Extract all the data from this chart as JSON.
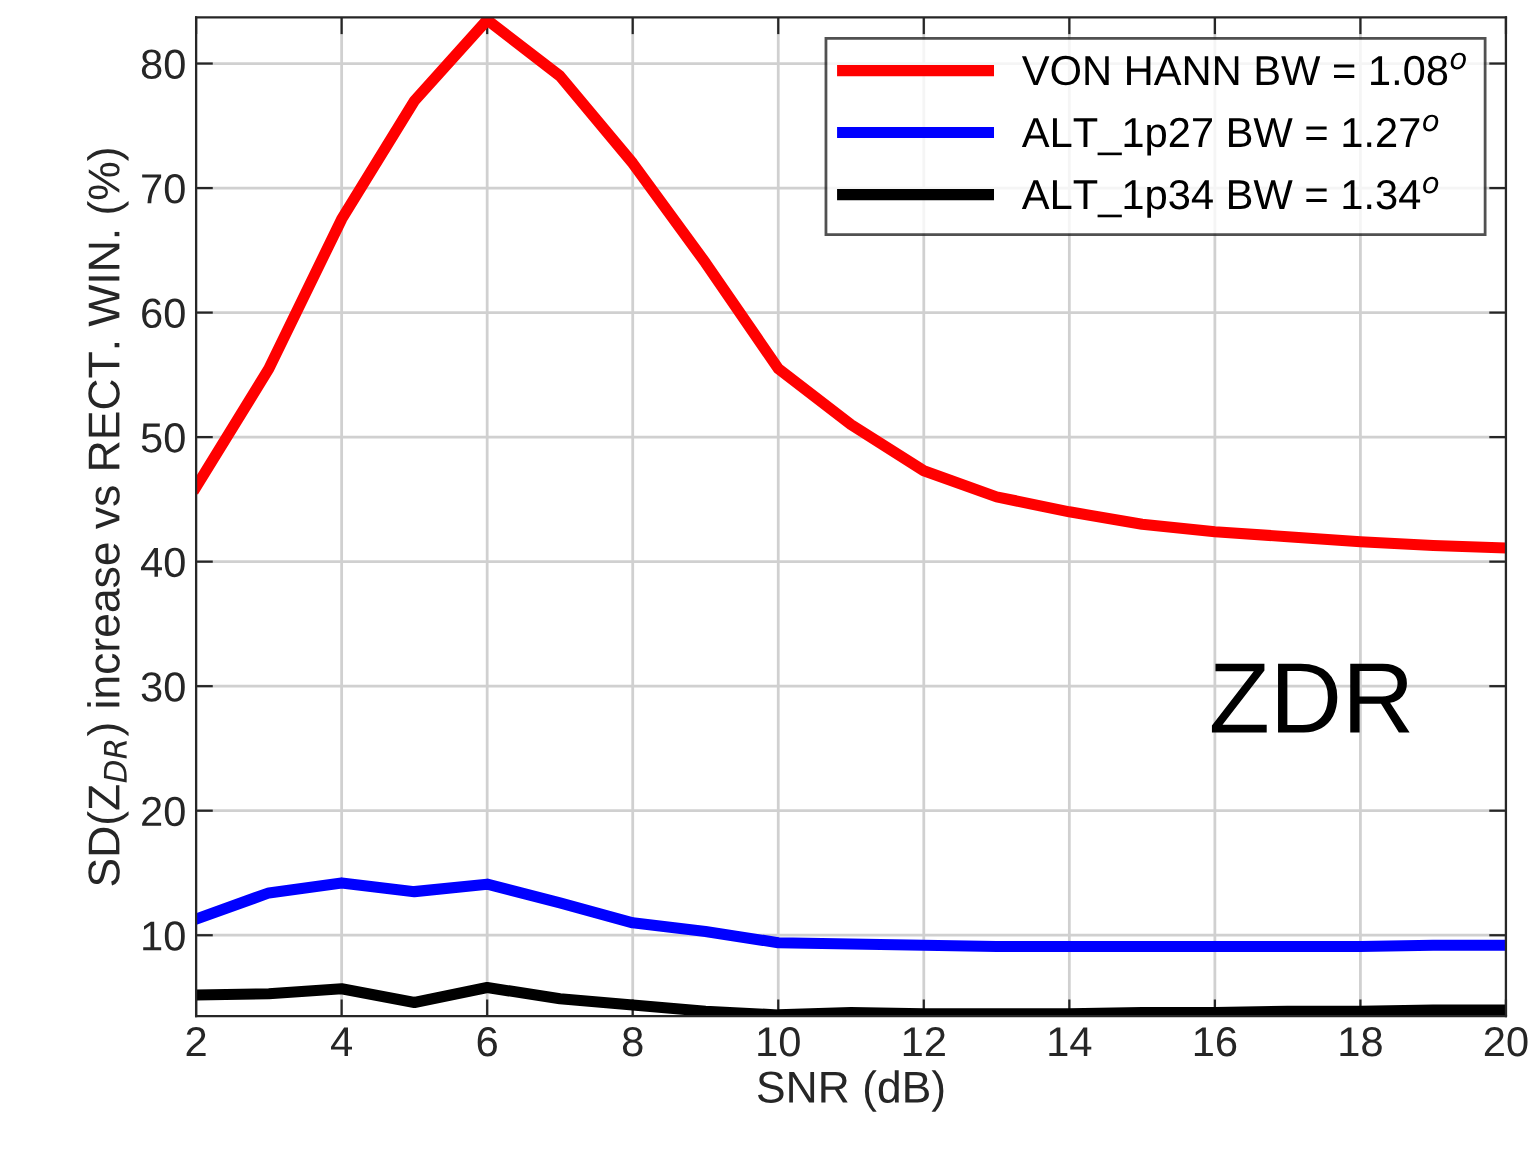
{
  "chart_data": {
    "type": "line",
    "xlabel": "SNR (dB)",
    "ylabel": "SD(Z$_{DR}$) increase vs RECT. WIN. (%)",
    "annotations": [
      "ZDR"
    ],
    "x": [
      2,
      3,
      4,
      5,
      6,
      7,
      8,
      9,
      10,
      11,
      12,
      13,
      14,
      15,
      16,
      17,
      18,
      19,
      20
    ],
    "series": [
      {
        "name": "VON HANN BW = 1.08$^{o}$",
        "color": "#ff0000",
        "values": [
          46,
          55.5,
          67.5,
          77,
          83.5,
          79,
          72,
          64,
          55.5,
          51,
          47.3,
          45.2,
          44,
          43,
          42.4,
          42,
          41.6,
          41.3,
          41.1
        ]
      },
      {
        "name": "ALT_1p27 BW = 1.27$^{o}$",
        "color": "#0000ff",
        "values": [
          11.3,
          13.4,
          14.2,
          13.5,
          14.1,
          12.6,
          11,
          10.3,
          9.4,
          9.3,
          9.2,
          9.1,
          9.1,
          9.1,
          9.1,
          9.1,
          9.1,
          9.2,
          9.2
        ]
      },
      {
        "name": "ALT_1p34 BW = 1.34$^{o}$",
        "color": "#000000",
        "values": [
          5.2,
          5.3,
          5.7,
          4.6,
          5.8,
          4.9,
          4.4,
          3.9,
          3.6,
          3.8,
          3.7,
          3.7,
          3.7,
          3.8,
          3.8,
          3.9,
          3.9,
          4.0,
          4.0
        ]
      }
    ],
    "xlim": [
      2,
      20
    ],
    "xticks": [
      2,
      4,
      6,
      8,
      10,
      12,
      14,
      16,
      18,
      20
    ],
    "ylim": [
      3.5,
      83.7
    ],
    "yticks": [
      10,
      20,
      30,
      40,
      50,
      60,
      70,
      80
    ],
    "grid": true,
    "legend": "top right",
    "marker": "none",
    "line_style": "solid"
  }
}
